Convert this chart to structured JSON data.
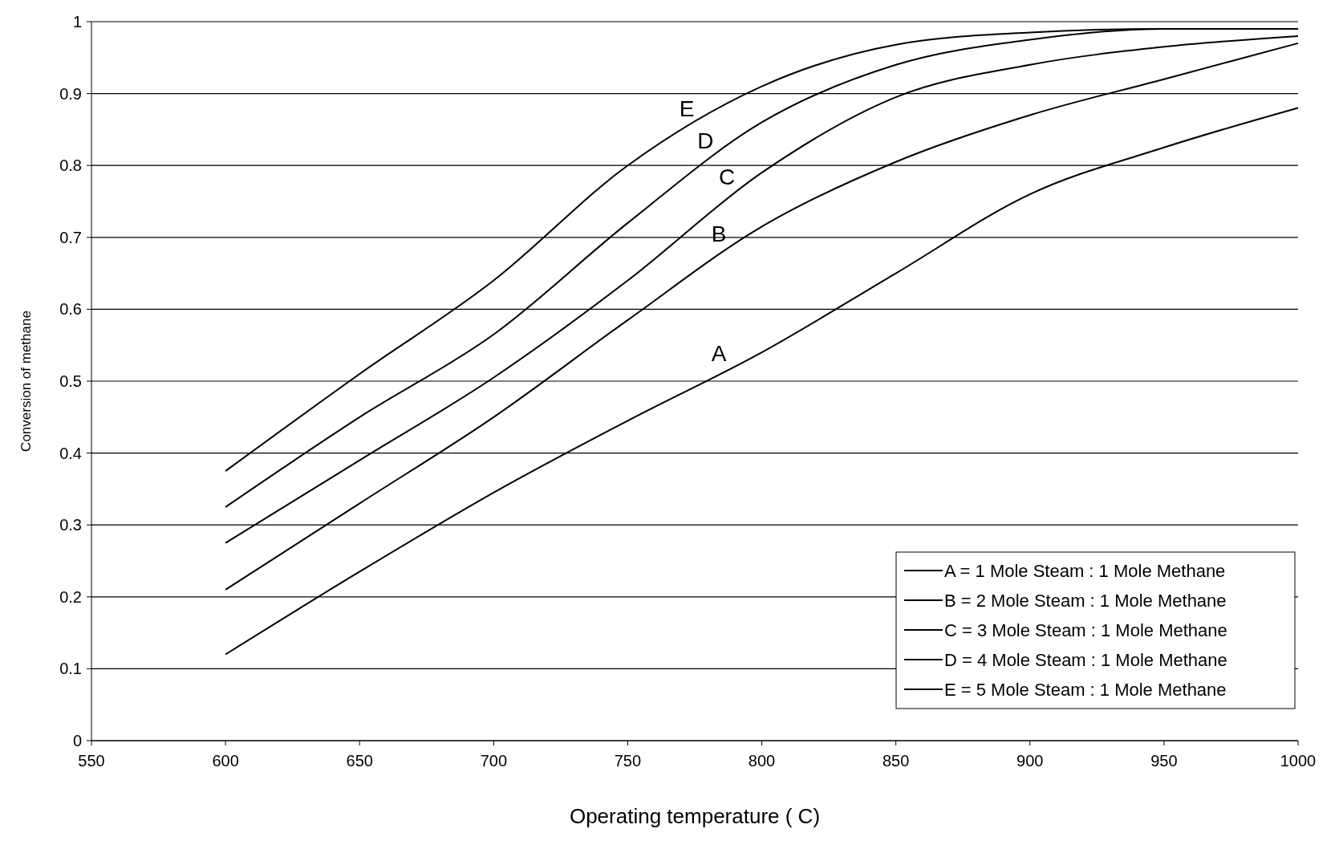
{
  "chart_data": {
    "type": "line",
    "xlabel": "Operating temperature ( C)",
    "ylabel": "Conversion of methane",
    "x": [
      600,
      650,
      700,
      750,
      800,
      850,
      900,
      950,
      1000
    ],
    "series": [
      {
        "name": "A = 1 Mole Steam : 1 Mole Methane",
        "color": "#000000",
        "values": [
          0.12,
          0.235,
          0.345,
          0.445,
          0.54,
          0.65,
          0.76,
          0.825,
          0.88
        ]
      },
      {
        "name": "B = 2 Mole Steam : 1 Mole Methane",
        "color": "#000000",
        "values": [
          0.21,
          0.33,
          0.45,
          0.585,
          0.715,
          0.805,
          0.87,
          0.92,
          0.97
        ]
      },
      {
        "name": "C = 3 Mole Steam : 1 Mole Methane",
        "color": "#000000",
        "values": [
          0.275,
          0.39,
          0.505,
          0.64,
          0.79,
          0.895,
          0.94,
          0.965,
          0.98
        ]
      },
      {
        "name": "D = 4 Mole Steam : 1 Mole Methane",
        "color": "#000000",
        "values": [
          0.325,
          0.45,
          0.565,
          0.72,
          0.86,
          0.94,
          0.975,
          0.99,
          0.99
        ]
      },
      {
        "name": "E = 5 Mole Steam : 1 Mole Methane",
        "color": "#000000",
        "values": [
          0.375,
          0.51,
          0.64,
          0.8,
          0.91,
          0.968,
          0.985,
          0.99,
          0.99
        ]
      }
    ],
    "annotations": [
      {
        "text": "A",
        "x": 787,
        "y": 0.515
      },
      {
        "text": "B",
        "x": 787,
        "y": 0.681
      },
      {
        "text": "C",
        "x": 790,
        "y": 0.76
      },
      {
        "text": "D",
        "x": 782,
        "y": 0.81
      },
      {
        "text": "E",
        "x": 775,
        "y": 0.855
      }
    ],
    "xlim": [
      550,
      1000
    ],
    "xticks": [
      550,
      600,
      650,
      700,
      750,
      800,
      850,
      900,
      950,
      1000
    ],
    "ylim": [
      0,
      1
    ],
    "yticks": [
      0,
      0.1,
      0.2,
      0.3,
      0.4,
      0.5,
      0.6,
      0.7,
      0.8,
      0.9,
      1
    ],
    "grid": "y",
    "legend": "bottom right",
    "marker": "none",
    "line_style": "solid"
  }
}
